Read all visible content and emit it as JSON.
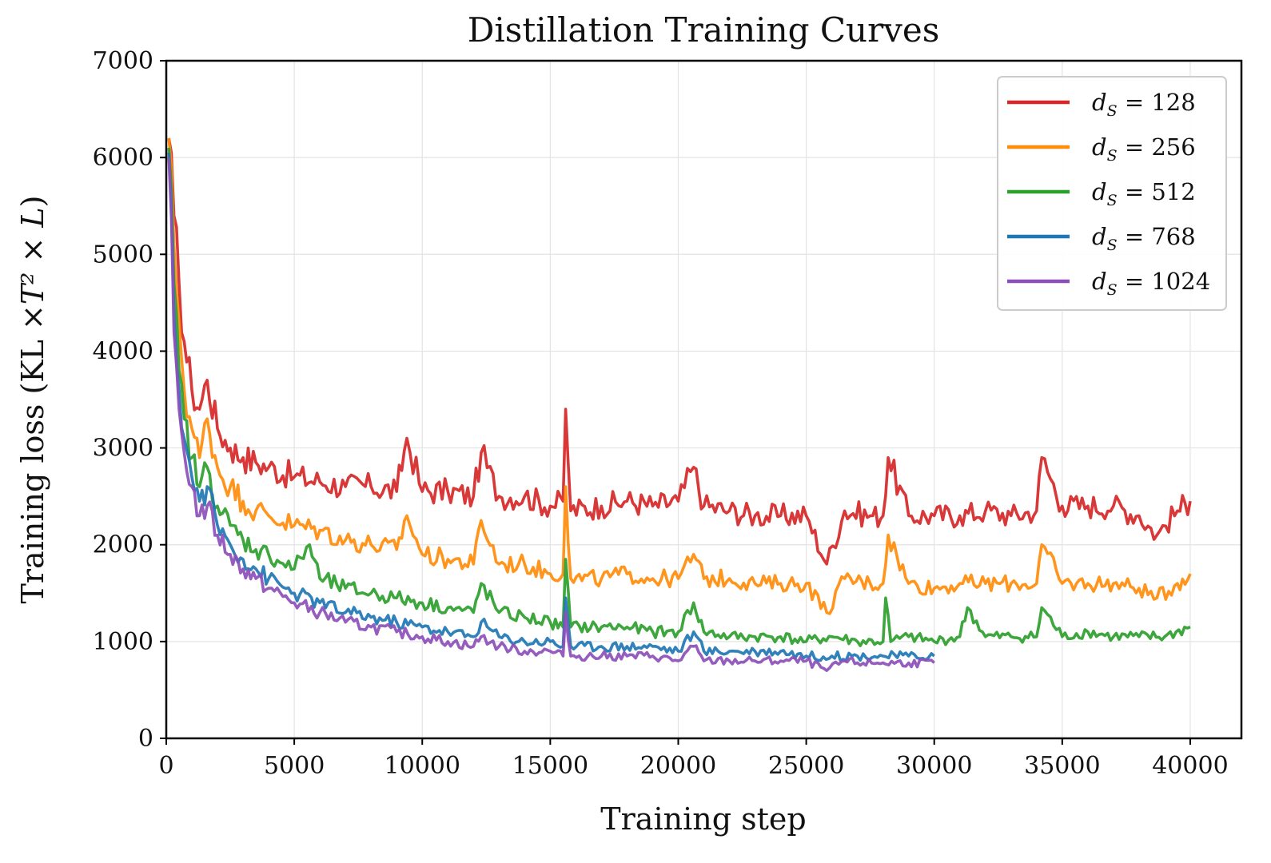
{
  "chart_data": {
    "type": "line",
    "title": "Distillation Training Curves",
    "xlabel": "Training step",
    "ylabel_main": "Training loss (KL ",
    "ylabel_math": "×T² × L",
    "ylabel_close": ")",
    "xlim": [
      0,
      42000
    ],
    "ylim": [
      0,
      7000
    ],
    "xticks": [
      0,
      5000,
      10000,
      15000,
      20000,
      25000,
      30000,
      35000,
      40000
    ],
    "yticks": [
      0,
      1000,
      2000,
      3000,
      4000,
      5000,
      6000,
      7000
    ],
    "grid": true,
    "legend_position": "top-right",
    "legend": [
      {
        "var": "d",
        "sub": "S",
        "eq": " = 128"
      },
      {
        "var": "d",
        "sub": "S",
        "eq": " = 256"
      },
      {
        "var": "d",
        "sub": "S",
        "eq": " = 512"
      },
      {
        "var": "d",
        "sub": "S",
        "eq": " = 768"
      },
      {
        "var": "d",
        "sub": "S",
        "eq": " = 1024"
      }
    ],
    "series": [
      {
        "name": "d_S = 128",
        "color": "#d62728",
        "x": [
          100,
          300,
          500,
          700,
          1000,
          1300,
          1600,
          2000,
          2500,
          3000,
          3500,
          4000,
          5000,
          6000,
          7000,
          8000,
          9000,
          9400,
          10000,
          11000,
          12000,
          12300,
          13000,
          14000,
          15000,
          15500,
          15600,
          15800,
          17000,
          18000,
          19000,
          20000,
          20600,
          21000,
          22000,
          23000,
          24000,
          25000,
          25800,
          26500,
          27500,
          28000,
          28200,
          29000,
          30000,
          31000,
          32000,
          33000,
          34000,
          34200,
          35000,
          36000,
          37000,
          38000,
          38700,
          39500,
          40000
        ],
        "y": [
          6200,
          5400,
          4700,
          4100,
          3600,
          3400,
          3700,
          3200,
          3000,
          2900,
          2850,
          2800,
          2700,
          2650,
          2600,
          2600,
          2550,
          3100,
          2550,
          2550,
          2500,
          2950,
          2500,
          2500,
          2400,
          2450,
          3400,
          2350,
          2400,
          2450,
          2400,
          2450,
          2800,
          2400,
          2350,
          2300,
          2300,
          2300,
          1800,
          2350,
          2300,
          2300,
          2900,
          2300,
          2300,
          2300,
          2350,
          2300,
          2350,
          2900,
          2400,
          2400,
          2400,
          2300,
          2100,
          2350,
          2450
        ]
      },
      {
        "name": "d_S = 256",
        "color": "#ff8c0a",
        "x": [
          100,
          300,
          500,
          700,
          1000,
          1300,
          1600,
          2000,
          2500,
          3000,
          3500,
          4000,
          5000,
          6000,
          7000,
          8000,
          9000,
          9400,
          10000,
          11000,
          12000,
          12300,
          13000,
          14000,
          15000,
          15500,
          15600,
          15800,
          17000,
          18000,
          19000,
          20000,
          20600,
          21000,
          22000,
          23000,
          24000,
          25000,
          25800,
          26500,
          27500,
          28000,
          28200,
          29000,
          30000,
          31000,
          32000,
          33000,
          34000,
          34200,
          35000,
          36000,
          37000,
          38000,
          38700,
          39500,
          40000
        ],
        "y": [
          6200,
          5100,
          4300,
          3600,
          3200,
          2900,
          3300,
          2800,
          2600,
          2450,
          2350,
          2300,
          2200,
          2150,
          2050,
          2000,
          1950,
          2300,
          1900,
          1850,
          1800,
          2250,
          1800,
          1800,
          1700,
          1700,
          2600,
          1650,
          1650,
          1700,
          1650,
          1650,
          1900,
          1650,
          1650,
          1600,
          1600,
          1600,
          1300,
          1650,
          1600,
          1600,
          2100,
          1600,
          1550,
          1600,
          1600,
          1600,
          1600,
          2000,
          1600,
          1600,
          1600,
          1550,
          1450,
          1600,
          1700
        ]
      },
      {
        "name": "d_S = 512",
        "color": "#2ca02c",
        "x": [
          100,
          300,
          500,
          700,
          1000,
          1300,
          1600,
          2000,
          2500,
          3000,
          3500,
          4000,
          5000,
          5600,
          6000,
          7000,
          8000,
          9000,
          10000,
          11000,
          12000,
          12300,
          13000,
          14000,
          15000,
          15500,
          15600,
          15800,
          17000,
          18000,
          19000,
          20000,
          20600,
          21000,
          22000,
          23000,
          24000,
          25000,
          26000,
          27000,
          28000,
          28100,
          28300,
          29000,
          30000,
          31000,
          31300,
          32000,
          33000,
          34000,
          34200,
          35000,
          36000,
          37000,
          38000,
          39000,
          40000
        ],
        "y": [
          6100,
          4700,
          3800,
          3300,
          2900,
          2600,
          2800,
          2400,
          2200,
          2050,
          1950,
          1900,
          1750,
          2000,
          1650,
          1550,
          1500,
          1450,
          1400,
          1350,
          1300,
          1600,
          1300,
          1250,
          1200,
          1150,
          1850,
          1150,
          1150,
          1150,
          1100,
          1100,
          1400,
          1100,
          1050,
          1050,
          1050,
          1000,
          1050,
          1000,
          1000,
          1450,
          1000,
          1050,
          1000,
          1050,
          1350,
          1050,
          1050,
          1050,
          1350,
          1050,
          1100,
          1050,
          1050,
          1050,
          1150
        ]
      },
      {
        "name": "d_S = 768",
        "color": "#1f77b4",
        "x": [
          100,
          300,
          500,
          700,
          1000,
          1300,
          1600,
          2000,
          2500,
          3000,
          3500,
          4000,
          5000,
          6000,
          7000,
          8000,
          9000,
          10000,
          11000,
          12000,
          12300,
          13000,
          14000,
          15000,
          15500,
          15600,
          15800,
          17000,
          18000,
          19000,
          20000,
          20600,
          21000,
          22000,
          23000,
          24000,
          25000,
          26000,
          27000,
          28000,
          29000,
          30000
        ],
        "y": [
          6050,
          4400,
          3600,
          3100,
          2700,
          2450,
          2600,
          2200,
          2000,
          1850,
          1750,
          1650,
          1500,
          1400,
          1300,
          1250,
          1200,
          1150,
          1100,
          1050,
          1200,
          1050,
          1000,
          1000,
          950,
          1450,
          950,
          950,
          950,
          950,
          900,
          1100,
          900,
          900,
          900,
          900,
          850,
          850,
          850,
          850,
          850,
          850
        ]
      },
      {
        "name": "d_S = 1024",
        "color": "#8c4fb8",
        "x": [
          100,
          300,
          500,
          700,
          1000,
          1300,
          1600,
          2000,
          2500,
          3000,
          3500,
          4000,
          5000,
          6000,
          7000,
          8000,
          9000,
          10000,
          11000,
          12000,
          12300,
          13000,
          14000,
          15000,
          15500,
          15600,
          15800,
          17000,
          18000,
          19000,
          20000,
          20600,
          21000,
          22000,
          23000,
          24000,
          25000,
          25800,
          26500,
          27000,
          28000,
          29000,
          30000
        ],
        "y": [
          6000,
          4200,
          3400,
          2950,
          2600,
          2300,
          2400,
          2100,
          1900,
          1750,
          1650,
          1550,
          1400,
          1300,
          1200,
          1150,
          1100,
          1050,
          1000,
          950,
          1050,
          950,
          900,
          900,
          850,
          1300,
          850,
          850,
          850,
          850,
          800,
          950,
          800,
          800,
          800,
          800,
          800,
          700,
          800,
          780,
          780,
          780,
          780
        ]
      }
    ]
  }
}
